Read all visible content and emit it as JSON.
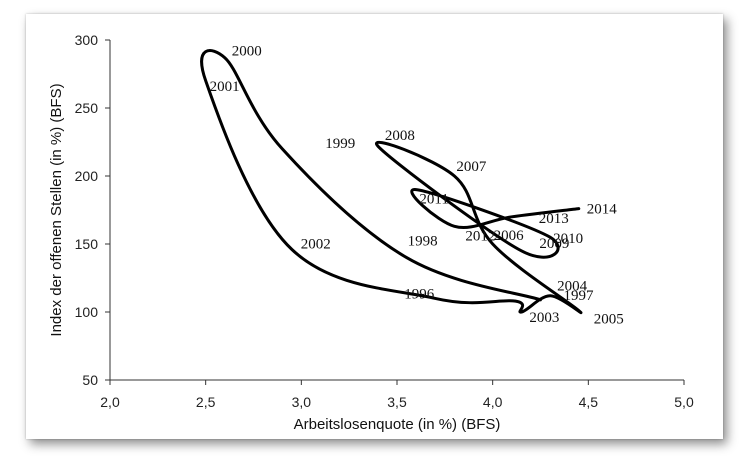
{
  "chart_data": {
    "type": "line",
    "title": "",
    "xlabel": "Arbeitslosenquote (in %) (BFS)",
    "ylabel": "Index der offenen Stellen (in %) (BFS)",
    "xlim": [
      2.0,
      5.0
    ],
    "ylim": [
      50,
      300
    ],
    "xticks": [
      "2,0",
      "2,5",
      "3,0",
      "3,5",
      "4,0",
      "4,5",
      "5,0"
    ],
    "xtick_values": [
      2.0,
      2.5,
      3.0,
      3.5,
      4.0,
      4.5,
      5.0
    ],
    "yticks": [
      "50",
      "100",
      "150",
      "200",
      "250",
      "300"
    ],
    "ytick_values": [
      50,
      100,
      150,
      200,
      250,
      300
    ],
    "grid": false,
    "line_color": "#000000",
    "smooth": true,
    "series": [
      {
        "points": [
          {
            "label": "1997",
            "x": 4.25,
            "y": 109
          },
          {
            "label": "1998",
            "x": 3.55,
            "y": 140
          },
          {
            "label": "1999",
            "x": 2.9,
            "y": 220
          },
          {
            "label": "2000",
            "x": 2.6,
            "y": 287
          },
          {
            "label": "2001",
            "x": 2.5,
            "y": 270
          },
          {
            "label": "2002",
            "x": 2.95,
            "y": 146
          },
          {
            "label": "1996",
            "x": 3.7,
            "y": 110
          },
          {
            "label": "",
            "x": 4.12,
            "y": 108
          },
          {
            "label": "2003",
            "x": 4.15,
            "y": 100
          },
          {
            "label": "2004",
            "x": 4.3,
            "y": 112
          },
          {
            "label": "2005",
            "x": 4.45,
            "y": 101
          },
          {
            "label": "2006",
            "x": 4.0,
            "y": 150
          },
          {
            "label": "2007",
            "x": 3.8,
            "y": 200
          },
          {
            "label": "2008",
            "x": 3.4,
            "y": 222
          },
          {
            "label": "2009",
            "x": 4.15,
            "y": 145
          },
          {
            "label": "2010",
            "x": 4.3,
            "y": 155
          },
          {
            "label": "2011",
            "x": 3.6,
            "y": 190
          },
          {
            "label": "2012",
            "x": 3.8,
            "y": 163
          },
          {
            "label": "2013",
            "x": 4.1,
            "y": 170
          },
          {
            "label": "2014",
            "x": 4.45,
            "y": 176
          }
        ]
      }
    ]
  }
}
